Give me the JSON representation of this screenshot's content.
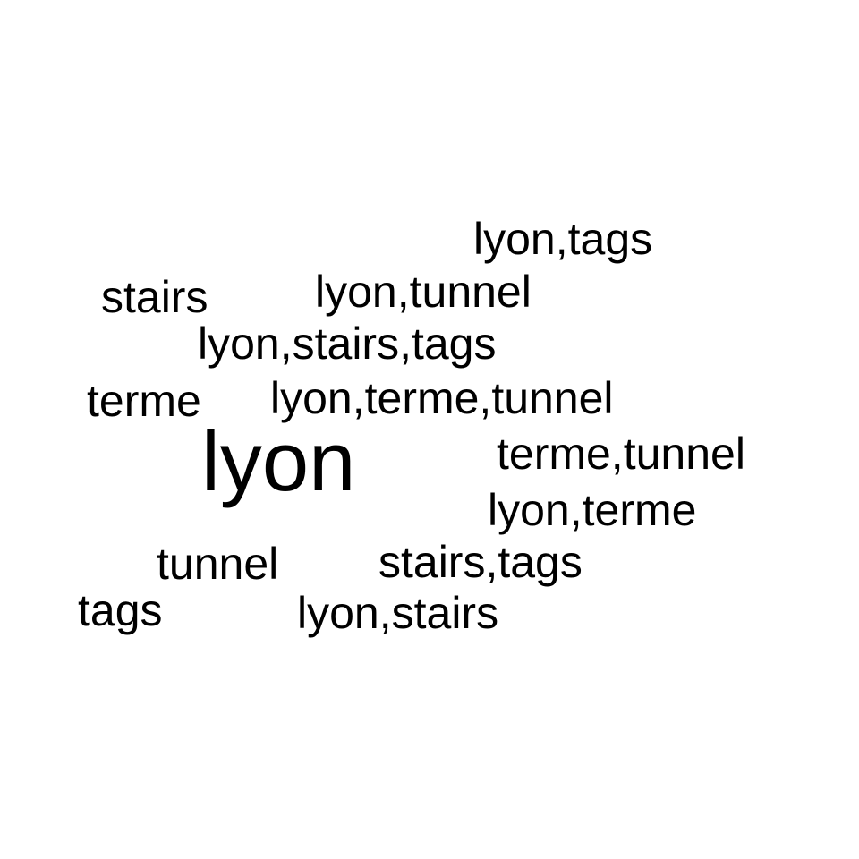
{
  "word_cloud": {
    "words": [
      "lyon,tags",
      "stairs",
      "lyon,tunnel",
      "lyon,stairs,tags",
      "terme",
      "lyon,terme,tunnel",
      "lyon",
      "terme,tunnel",
      "lyon,terme",
      "tunnel",
      "stairs,tags",
      "tags",
      "lyon,stairs"
    ],
    "text_color": "#000000",
    "background_color": "#ffffff"
  }
}
